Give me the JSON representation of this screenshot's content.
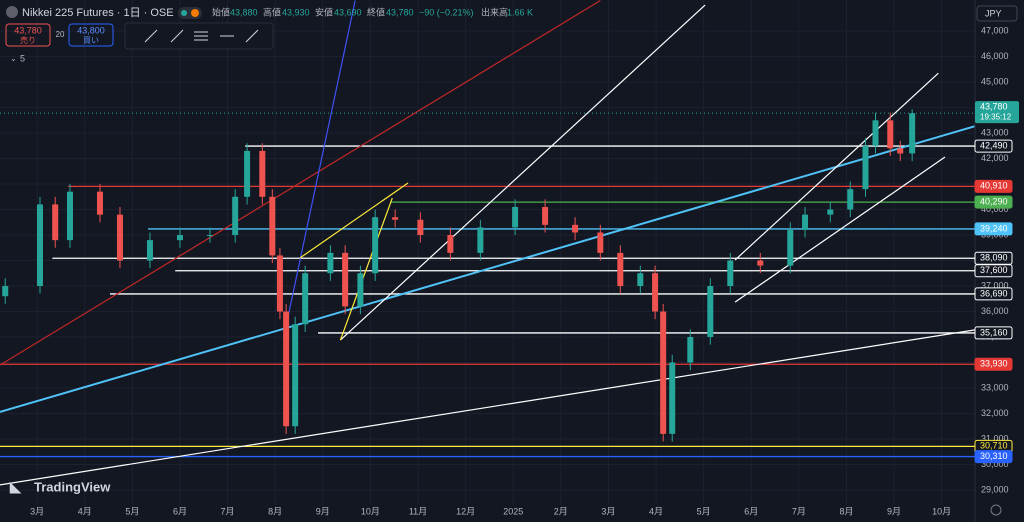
{
  "chart_data": {
    "type": "candlestick",
    "header": {
      "symbol": "Nikkei 225 Futures · 1日 · OSE",
      "open_label": "始値",
      "open": "43,880",
      "high_label": "高値",
      "high": "43,930",
      "low_label": "安値",
      "low": "43,690",
      "close_label": "終値",
      "close": "43,780",
      "change": "−90 (−0.21%)",
      "volume_label": "出来高",
      "volume": "1.66 K",
      "sell_price": "43,780",
      "sell": "売り",
      "spread": "20",
      "buy_price": "43,800",
      "buy": "買い",
      "indicators": "5",
      "currency": "JPY",
      "brand": "TradingView"
    },
    "up_color": "#26a69a",
    "down_color": "#ef5350",
    "x": [
      0.33,
      1.06,
      1.38,
      1.69,
      2.32,
      2.74,
      3.37,
      4.0,
      4.63,
      5.16,
      5.41,
      5.73,
      5.94,
      6.1,
      6.23,
      6.42,
      6.63,
      7.16,
      7.47,
      7.79,
      8.1,
      8.52,
      9.05,
      9.68,
      10.31,
      11.04,
      11.67,
      12.3,
      12.83,
      13.25,
      13.67,
      13.98,
      14.15,
      14.34,
      14.72,
      15.14,
      15.56,
      16.19,
      16.82,
      17.13,
      17.66,
      18.08,
      18.4,
      18.61,
      18.92,
      19.13,
      19.38
    ],
    "open": [
      36600,
      37000,
      40200,
      38800,
      40700,
      39800,
      38000,
      38800,
      39000,
      39000,
      40500,
      42300,
      40500,
      38200,
      36000,
      31500,
      35500,
      37500,
      38300,
      36200,
      37500,
      39700,
      39600,
      39000,
      38300,
      39300,
      40100,
      39400,
      39100,
      38300,
      37000,
      37500,
      36000,
      31200,
      34000,
      35000,
      37000,
      38000,
      37800,
      39200,
      39800,
      40000,
      40800,
      42500,
      43500,
      42400,
      42200
    ],
    "high": [
      37300,
      40500,
      40500,
      41000,
      41000,
      40100,
      39100,
      39300,
      39300,
      40800,
      42600,
      42600,
      40800,
      38500,
      36300,
      35800,
      37800,
      38600,
      38600,
      37800,
      40000,
      40000,
      39900,
      39300,
      39600,
      40400,
      40400,
      39700,
      39400,
      38600,
      37800,
      37800,
      36300,
      34300,
      35300,
      37300,
      38300,
      38300,
      39500,
      40100,
      40300,
      41100,
      42800,
      43800,
      43800,
      42700,
      43930
    ],
    "low": [
      36300,
      36700,
      38500,
      38500,
      39500,
      37700,
      37700,
      38500,
      38700,
      38700,
      40200,
      40200,
      37900,
      35700,
      31200,
      31200,
      35200,
      37200,
      35900,
      35900,
      37200,
      39300,
      38700,
      38000,
      38000,
      39000,
      39100,
      38800,
      38000,
      36700,
      36700,
      35700,
      30900,
      30900,
      33700,
      34700,
      36700,
      37500,
      37500,
      38900,
      39500,
      39700,
      40500,
      42200,
      42100,
      41900,
      41900
    ],
    "close": [
      37000,
      40200,
      38800,
      40700,
      39800,
      38000,
      38800,
      39000,
      39000,
      40500,
      42300,
      40500,
      38200,
      36000,
      31500,
      35500,
      37500,
      38300,
      36200,
      37500,
      39700,
      39600,
      39000,
      38300,
      39300,
      40100,
      39400,
      39100,
      38300,
      37000,
      37500,
      36000,
      31200,
      34000,
      35000,
      37000,
      38000,
      37800,
      39200,
      39800,
      40000,
      40800,
      42500,
      43500,
      42400,
      42200,
      43780
    ],
    "xlim": [
      0.22,
      20.7
    ],
    "ylim": [
      28410,
      48220
    ],
    "xticks": [
      {
        "value": 1,
        "label": "3月"
      },
      {
        "value": 2,
        "label": "4月"
      },
      {
        "value": 3,
        "label": "5月"
      },
      {
        "value": 4,
        "label": "6月"
      },
      {
        "value": 5,
        "label": "7月"
      },
      {
        "value": 6,
        "label": "8月"
      },
      {
        "value": 7,
        "label": "9月"
      },
      {
        "value": 8,
        "label": "10月"
      },
      {
        "value": 9,
        "label": "11月"
      },
      {
        "value": 10,
        "label": "12月"
      },
      {
        "value": 11,
        "label": "2025"
      },
      {
        "value": 12,
        "label": "2月"
      },
      {
        "value": 13,
        "label": "3月"
      },
      {
        "value": 14,
        "label": "4月"
      },
      {
        "value": 15,
        "label": "5月"
      },
      {
        "value": 16,
        "label": "6月"
      },
      {
        "value": 17,
        "label": "7月"
      },
      {
        "value": 18,
        "label": "8月"
      },
      {
        "value": 19,
        "label": "9月"
      },
      {
        "value": 20,
        "label": "10月"
      }
    ],
    "yticks": [
      {
        "value": 47000,
        "label": "47,000"
      },
      {
        "value": 46000,
        "label": "46,000"
      },
      {
        "value": 45000,
        "label": "45,000"
      },
      {
        "value": 44000,
        "label": "44,000"
      },
      {
        "value": 43000,
        "label": "43,000"
      },
      {
        "value": 42000,
        "label": "42,000"
      },
      {
        "value": 41000,
        "label": "41,000"
      },
      {
        "value": 40000,
        "label": "40,000"
      },
      {
        "value": 39000,
        "label": "39,000"
      },
      {
        "value": 38000,
        "label": "38,000"
      },
      {
        "value": 37000,
        "label": "37,000"
      },
      {
        "value": 36000,
        "label": "36,000"
      },
      {
        "value": 35000,
        "label": "35,000"
      },
      {
        "value": 34000,
        "label": "34,000"
      },
      {
        "value": 33000,
        "label": "33,000"
      },
      {
        "value": 32000,
        "label": "32,000"
      },
      {
        "value": 31000,
        "label": "31,000"
      },
      {
        "value": 30000,
        "label": "30,000"
      },
      {
        "value": 29000,
        "label": "29,000"
      }
    ],
    "levels": [
      {
        "value": 42490,
        "label": "42,490",
        "color": "#ffffff",
        "from": 5.37
      },
      {
        "value": 40910,
        "label": "40,910",
        "color": "#e53935",
        "from": 1.65
      },
      {
        "value": 40290,
        "label": "40,290",
        "color": "#4caf50",
        "from": 8.42
      },
      {
        "value": 39240,
        "label": "39,240",
        "color": "#4fc3f7",
        "from": 3.33
      },
      {
        "value": 38090,
        "label": "38,090",
        "color": "#ffffff",
        "from": 1.32
      },
      {
        "value": 37600,
        "label": "37,600",
        "color": "#ffffff",
        "from": 3.9
      },
      {
        "value": 36690,
        "label": "36,690",
        "color": "#ffffff",
        "from": 2.53
      },
      {
        "value": 35160,
        "label": "35,160",
        "color": "#ffffff",
        "from": 6.9
      },
      {
        "value": 33930,
        "label": "33,930",
        "color": "#e53935",
        "from": 0.22
      },
      {
        "value": 30710,
        "label": "30,710",
        "color": "#ffeb3b",
        "from": 0.22
      },
      {
        "value": 30310,
        "label": "30,310",
        "color": "#2962ff",
        "from": 0.22
      }
    ],
    "trendlines": [
      {
        "color": "#c62828",
        "points": [
          [
            0.22,
            33900
          ],
          [
            12.83,
            48200
          ]
        ]
      },
      {
        "color": "#3f51f5",
        "points": [
          [
            6.21,
            35270
          ],
          [
            7.68,
            48200
          ]
        ]
      },
      {
        "color": "#4fc3f7",
        "points": [
          [
            0.22,
            32060
          ],
          [
            20.7,
            43270
          ]
        ]
      },
      {
        "color": "#ffffff",
        "points": [
          [
            0.22,
            29200
          ],
          [
            20.7,
            35280
          ]
        ]
      },
      {
        "color": "#ffffff",
        "points": [
          [
            7.37,
            34880
          ],
          [
            15.03,
            48020
          ]
        ]
      },
      {
        "color": "#ffffff",
        "points": [
          [
            15.66,
            38020
          ],
          [
            19.93,
            45350
          ]
        ]
      },
      {
        "color": "#ffffff",
        "points": [
          [
            15.66,
            36370
          ],
          [
            20.07,
            42060
          ]
        ]
      },
      {
        "color": "#ffeb3b",
        "points": [
          [
            6.52,
            38100
          ],
          [
            8.79,
            41040
          ]
        ]
      },
      {
        "color": "#ffeb3b",
        "points": [
          [
            7.37,
            34880
          ],
          [
            8.46,
            40450
          ]
        ]
      }
    ],
    "last": {
      "value": 43780,
      "label": "43,780",
      "time": "19:35:12",
      "color": "#26a69a"
    }
  }
}
